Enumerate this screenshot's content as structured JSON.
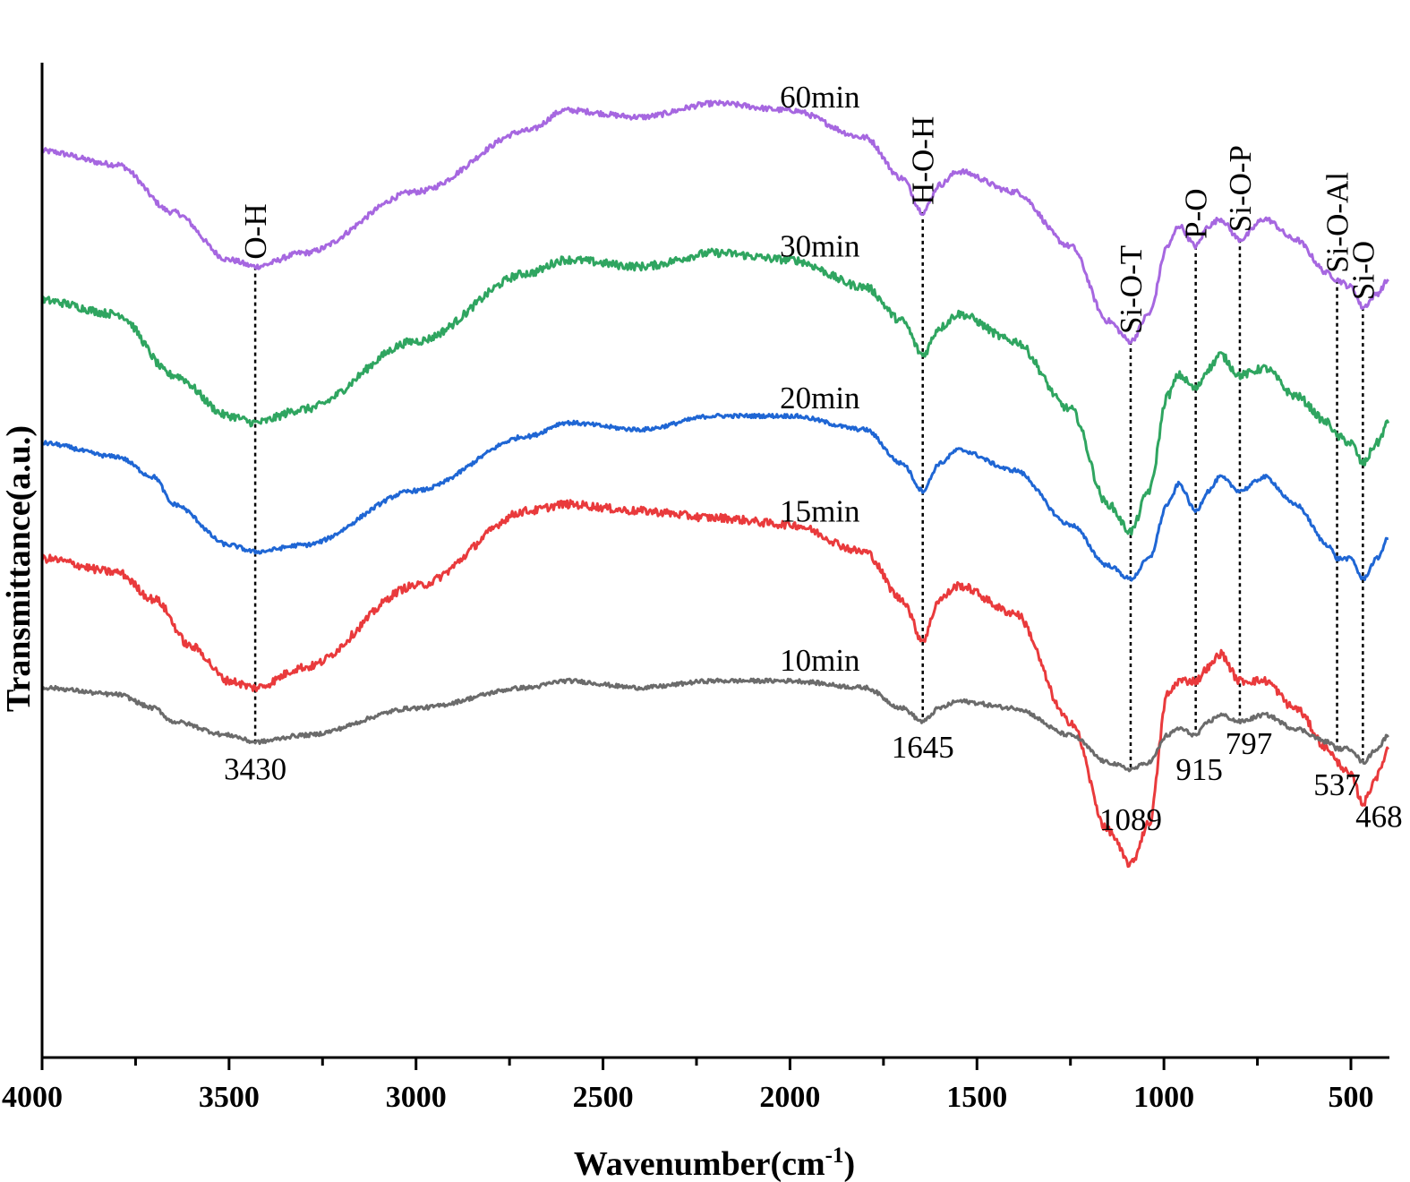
{
  "chart_data": {
    "type": "line",
    "xlabel": "Wavenumber(cm",
    "xlabel_sup": "-1",
    "xlabel_end": ")",
    "ylabel": "Transmittance(a.u.)",
    "xlim": [
      4000,
      400
    ],
    "x_reversed": true,
    "yticks_shown": false,
    "grid": false,
    "xticks": [
      {
        "value": 4000,
        "label": "4000"
      },
      {
        "value": 3500,
        "label": "3500"
      },
      {
        "value": 3000,
        "label": "3000"
      },
      {
        "value": 2500,
        "label": "2500"
      },
      {
        "value": 2000,
        "label": "2000"
      },
      {
        "value": 1500,
        "label": "1500"
      },
      {
        "value": 1000,
        "label": "1000"
      },
      {
        "value": 500,
        "label": "500"
      }
    ],
    "series": [
      {
        "name": "60min",
        "color": "#a667e0",
        "offset": 0.8,
        "noise": 0.004,
        "points": [
          [
            4000,
            0.92
          ],
          [
            3800,
            0.9
          ],
          [
            3650,
            0.83
          ],
          [
            3500,
            0.76
          ],
          [
            3430,
            0.75
          ],
          [
            3300,
            0.77
          ],
          [
            3000,
            0.86
          ],
          [
            2700,
            0.95
          ],
          [
            2600,
            0.98
          ],
          [
            2400,
            0.97
          ],
          [
            2200,
            0.99
          ],
          [
            2000,
            0.98
          ],
          [
            1800,
            0.94
          ],
          [
            1700,
            0.88
          ],
          [
            1645,
            0.83
          ],
          [
            1600,
            0.87
          ],
          [
            1550,
            0.89
          ],
          [
            1400,
            0.86
          ],
          [
            1250,
            0.78
          ],
          [
            1150,
            0.67
          ],
          [
            1089,
            0.64
          ],
          [
            1040,
            0.68
          ],
          [
            990,
            0.78
          ],
          [
            960,
            0.81
          ],
          [
            915,
            0.78
          ],
          [
            880,
            0.81
          ],
          [
            850,
            0.82
          ],
          [
            797,
            0.79
          ],
          [
            730,
            0.82
          ],
          [
            650,
            0.79
          ],
          [
            560,
            0.74
          ],
          [
            537,
            0.73
          ],
          [
            500,
            0.72
          ],
          [
            468,
            0.69
          ],
          [
            430,
            0.71
          ],
          [
            400,
            0.73
          ]
        ]
      },
      {
        "name": "30min",
        "color": "#2fa560",
        "offset": 0.6,
        "noise": 0.006,
        "points": [
          [
            4000,
            0.9
          ],
          [
            3800,
            0.88
          ],
          [
            3650,
            0.79
          ],
          [
            3500,
            0.73
          ],
          [
            3430,
            0.72
          ],
          [
            3300,
            0.74
          ],
          [
            3000,
            0.84
          ],
          [
            2700,
            0.94
          ],
          [
            2600,
            0.96
          ],
          [
            2400,
            0.95
          ],
          [
            2200,
            0.97
          ],
          [
            2000,
            0.96
          ],
          [
            1800,
            0.92
          ],
          [
            1700,
            0.87
          ],
          [
            1645,
            0.82
          ],
          [
            1600,
            0.86
          ],
          [
            1550,
            0.88
          ],
          [
            1400,
            0.84
          ],
          [
            1250,
            0.74
          ],
          [
            1150,
            0.6
          ],
          [
            1089,
            0.56
          ],
          [
            1040,
            0.62
          ],
          [
            990,
            0.76
          ],
          [
            960,
            0.79
          ],
          [
            915,
            0.77
          ],
          [
            880,
            0.8
          ],
          [
            850,
            0.82
          ],
          [
            797,
            0.79
          ],
          [
            730,
            0.8
          ],
          [
            650,
            0.76
          ],
          [
            560,
            0.72
          ],
          [
            537,
            0.7
          ],
          [
            500,
            0.69
          ],
          [
            468,
            0.66
          ],
          [
            430,
            0.69
          ],
          [
            400,
            0.72
          ]
        ]
      },
      {
        "name": "20min",
        "color": "#1f66d4",
        "offset": 0.4,
        "noise": 0.003,
        "points": [
          [
            4000,
            0.89
          ],
          [
            3800,
            0.87
          ],
          [
            3700,
            0.84
          ],
          [
            3650,
            0.8
          ],
          [
            3500,
            0.74
          ],
          [
            3430,
            0.73
          ],
          [
            3300,
            0.74
          ],
          [
            3000,
            0.82
          ],
          [
            2700,
            0.9
          ],
          [
            2600,
            0.92
          ],
          [
            2400,
            0.91
          ],
          [
            2200,
            0.93
          ],
          [
            2000,
            0.93
          ],
          [
            1800,
            0.91
          ],
          [
            1700,
            0.86
          ],
          [
            1645,
            0.82
          ],
          [
            1600,
            0.86
          ],
          [
            1550,
            0.88
          ],
          [
            1400,
            0.85
          ],
          [
            1250,
            0.77
          ],
          [
            1150,
            0.71
          ],
          [
            1089,
            0.69
          ],
          [
            1040,
            0.72
          ],
          [
            990,
            0.8
          ],
          [
            960,
            0.83
          ],
          [
            915,
            0.79
          ],
          [
            880,
            0.82
          ],
          [
            850,
            0.84
          ],
          [
            797,
            0.82
          ],
          [
            730,
            0.84
          ],
          [
            650,
            0.8
          ],
          [
            560,
            0.74
          ],
          [
            537,
            0.72
          ],
          [
            500,
            0.72
          ],
          [
            468,
            0.69
          ],
          [
            430,
            0.72
          ],
          [
            400,
            0.75
          ]
        ]
      },
      {
        "name": "15min",
        "color": "#e93a3c",
        "offset": 0.2,
        "noise": 0.006,
        "points": [
          [
            4000,
            0.92
          ],
          [
            3800,
            0.9
          ],
          [
            3700,
            0.86
          ],
          [
            3600,
            0.79
          ],
          [
            3500,
            0.74
          ],
          [
            3430,
            0.73
          ],
          [
            3300,
            0.76
          ],
          [
            3000,
            0.88
          ],
          [
            2700,
            0.99
          ],
          [
            2600,
            1.0
          ],
          [
            2400,
            0.99
          ],
          [
            2200,
            0.98
          ],
          [
            2000,
            0.97
          ],
          [
            1800,
            0.93
          ],
          [
            1700,
            0.86
          ],
          [
            1645,
            0.8
          ],
          [
            1600,
            0.86
          ],
          [
            1550,
            0.88
          ],
          [
            1400,
            0.84
          ],
          [
            1250,
            0.68
          ],
          [
            1150,
            0.52
          ],
          [
            1089,
            0.47
          ],
          [
            1040,
            0.53
          ],
          [
            990,
            0.72
          ],
          [
            960,
            0.74
          ],
          [
            915,
            0.74
          ],
          [
            880,
            0.76
          ],
          [
            850,
            0.78
          ],
          [
            797,
            0.74
          ],
          [
            730,
            0.74
          ],
          [
            650,
            0.7
          ],
          [
            560,
            0.64
          ],
          [
            537,
            0.62
          ],
          [
            500,
            0.6
          ],
          [
            468,
            0.56
          ],
          [
            430,
            0.6
          ],
          [
            400,
            0.64
          ]
        ]
      },
      {
        "name": "10min",
        "color": "#6b6b6b",
        "offset": 0.0,
        "noise": 0.003,
        "points": [
          [
            4000,
            0.93
          ],
          [
            3800,
            0.92
          ],
          [
            3700,
            0.9
          ],
          [
            3650,
            0.88
          ],
          [
            3500,
            0.86
          ],
          [
            3430,
            0.85
          ],
          [
            3300,
            0.86
          ],
          [
            3000,
            0.9
          ],
          [
            2700,
            0.93
          ],
          [
            2600,
            0.94
          ],
          [
            2400,
            0.93
          ],
          [
            2200,
            0.94
          ],
          [
            2000,
            0.94
          ],
          [
            1800,
            0.93
          ],
          [
            1700,
            0.9
          ],
          [
            1645,
            0.88
          ],
          [
            1600,
            0.9
          ],
          [
            1550,
            0.91
          ],
          [
            1400,
            0.9
          ],
          [
            1250,
            0.86
          ],
          [
            1150,
            0.82
          ],
          [
            1089,
            0.81
          ],
          [
            1040,
            0.82
          ],
          [
            990,
            0.86
          ],
          [
            960,
            0.87
          ],
          [
            915,
            0.86
          ],
          [
            880,
            0.88
          ],
          [
            850,
            0.89
          ],
          [
            797,
            0.88
          ],
          [
            730,
            0.89
          ],
          [
            650,
            0.87
          ],
          [
            560,
            0.85
          ],
          [
            537,
            0.84
          ],
          [
            500,
            0.84
          ],
          [
            468,
            0.82
          ],
          [
            430,
            0.84
          ],
          [
            400,
            0.86
          ]
        ]
      }
    ],
    "reference_lines": [
      {
        "x": 3430,
        "band": "O-H",
        "peak": "3430"
      },
      {
        "x": 1645,
        "band": "H-O-H",
        "peak": "1645"
      },
      {
        "x": 1089,
        "band": "Si-O-T",
        "peak": "1089"
      },
      {
        "x": 915,
        "band": "P-O",
        "peak": "915"
      },
      {
        "x": 797,
        "band": "Si-O-P",
        "peak": "797"
      },
      {
        "x": 537,
        "band": "Si-O-Al",
        "peak": "537"
      },
      {
        "x": 468,
        "band": "Si-O",
        "peak": "468"
      }
    ]
  }
}
